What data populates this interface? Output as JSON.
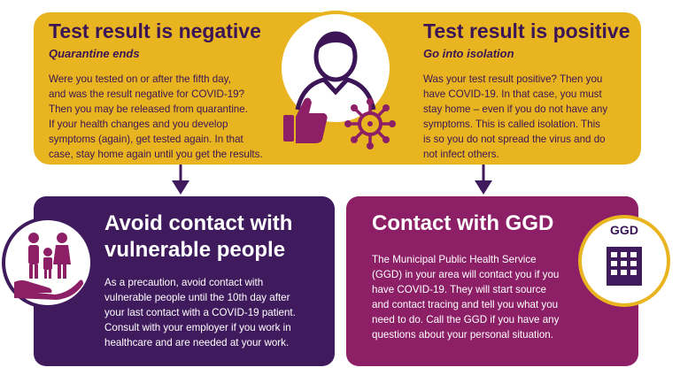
{
  "colors": {
    "yellow": "#e8b41f",
    "purple": "#3f1a5c",
    "magenta": "#8c1f66",
    "dark_text": "#3b1555"
  },
  "negative": {
    "title": "Test result is negative",
    "subtitle": "Quarantine ends",
    "body": "Were you tested on or after the fifth day,\nand was the result negative for COVID-19?\nThen you may be released from quarantine.\nIf your health changes and you develop\nsymptoms (again), get tested again. In that\ncase, stay home again until you get the results."
  },
  "positive": {
    "title": "Test result is positive",
    "subtitle": "Go into isolation",
    "body": "Was your test result positive? Then you\nhave COVID-19. In that case, you must\nstay home – even if you do not have any\nsymptoms. This is called isolation. This\nis so you do not spread the virus and do\nnot infect others."
  },
  "avoid_contact": {
    "title_line1": "Avoid contact with",
    "title_line2": "vulnerable people",
    "body": "As a precaution, avoid contact with\nvulnerable people until the 10th day after\nyour last contact with a COVID-19 patient.\nConsult with your employer if you work in\nhealthcare and are needed at your work."
  },
  "ggd": {
    "title": "Contact with GGD",
    "badge": "GGD",
    "body": "The Municipal Public Health Service\n(GGD) in your area will contact you if you\nhave COVID-19. They will start source\nand contact tracing and tell you what you\nneed to do. Call the GGD if you have any\nquestions about your personal situation."
  }
}
